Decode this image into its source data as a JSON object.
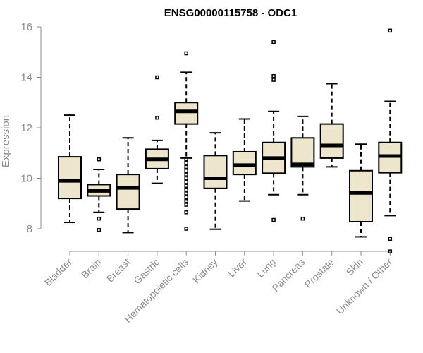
{
  "chart_data": {
    "type": "boxplot",
    "title": "ENSG00000115758 - ODC1",
    "xlabel": "",
    "ylabel": "Expression",
    "ylim": [
      7.2,
      16.3
    ],
    "yticks": [
      8,
      10,
      12,
      14,
      16
    ],
    "box_color": "#ede6cc",
    "categories": [
      "Bladder",
      "Brain",
      "Breast",
      "Gastric",
      "Hematopoietic cells",
      "Kidney",
      "Liver",
      "Lung",
      "Pancreas",
      "Prostate",
      "Skin",
      "Unknown / Other"
    ],
    "boxes": [
      {
        "whisker_low": 8.25,
        "q1": 9.2,
        "median": 9.9,
        "q3": 10.85,
        "whisker_high": 12.5,
        "outliers": []
      },
      {
        "whisker_low": 8.65,
        "q1": 9.3,
        "median": 9.5,
        "q3": 9.75,
        "whisker_high": 10.35,
        "outliers": [
          10.75,
          8.4,
          7.95
        ]
      },
      {
        "whisker_low": 7.85,
        "q1": 8.78,
        "median": 9.62,
        "q3": 10.15,
        "whisker_high": 11.6,
        "outliers": []
      },
      {
        "whisker_low": 9.8,
        "q1": 10.38,
        "median": 10.75,
        "q3": 11.15,
        "whisker_high": 11.5,
        "outliers": [
          14.0,
          12.4
        ]
      },
      {
        "whisker_low": 10.8,
        "q1": 12.15,
        "median": 12.65,
        "q3": 13.0,
        "whisker_high": 14.2,
        "outliers": [
          14.95,
          10.75,
          10.6,
          10.45,
          10.3,
          10.15,
          10.0,
          9.85,
          9.7,
          9.55,
          9.4,
          9.25,
          9.1,
          8.95,
          8.65,
          8.0
        ]
      },
      {
        "whisker_low": 7.98,
        "q1": 9.6,
        "median": 10.0,
        "q3": 10.9,
        "whisker_high": 11.8,
        "outliers": []
      },
      {
        "whisker_low": 9.1,
        "q1": 10.15,
        "median": 10.52,
        "q3": 11.05,
        "whisker_high": 12.35,
        "outliers": []
      },
      {
        "whisker_low": 9.35,
        "q1": 10.2,
        "median": 10.8,
        "q3": 11.42,
        "whisker_high": 12.65,
        "outliers": [
          15.4,
          14.05,
          13.9,
          8.35
        ]
      },
      {
        "whisker_low": 9.35,
        "q1": 10.45,
        "median": 10.55,
        "q3": 11.6,
        "whisker_high": 12.45,
        "outliers": [
          8.4
        ]
      },
      {
        "whisker_low": 10.45,
        "q1": 10.8,
        "median": 11.3,
        "q3": 12.15,
        "whisker_high": 13.75,
        "outliers": []
      },
      {
        "whisker_low": 7.68,
        "q1": 8.28,
        "median": 9.42,
        "q3": 10.3,
        "whisker_high": 11.35,
        "outliers": []
      },
      {
        "whisker_low": 8.52,
        "q1": 10.22,
        "median": 10.88,
        "q3": 11.42,
        "whisker_high": 13.05,
        "outliers": [
          15.85,
          7.6,
          7.1
        ]
      }
    ],
    "grid": false,
    "legend": "none"
  }
}
